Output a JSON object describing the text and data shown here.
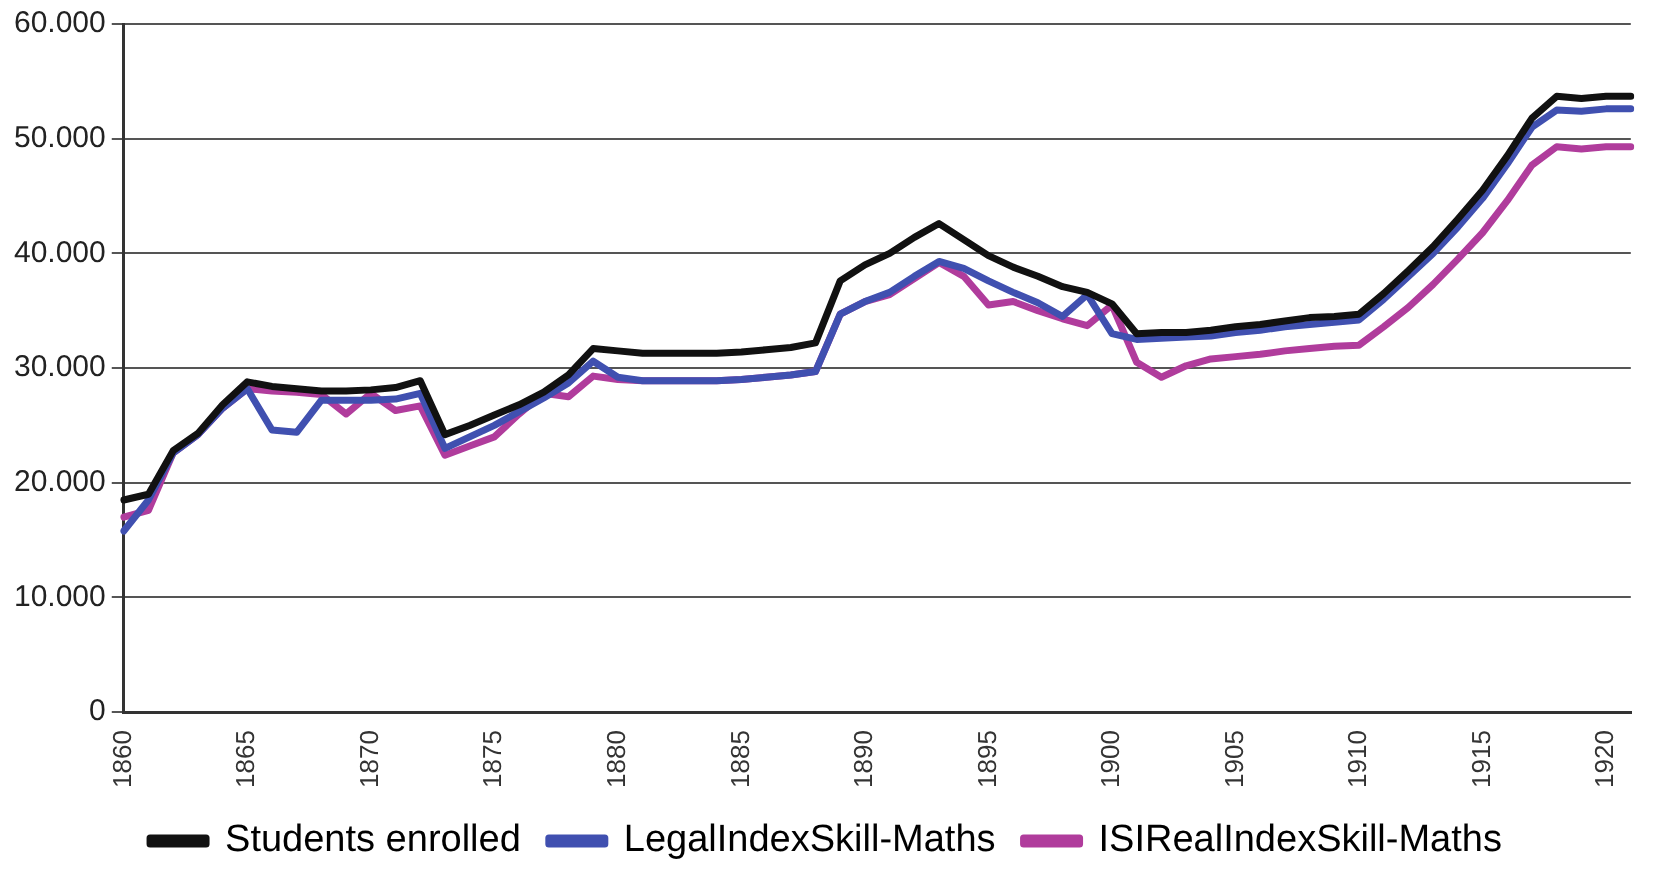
{
  "chart_data": {
    "type": "line",
    "categories": [
      "1860",
      null,
      null,
      null,
      null,
      "1865",
      null,
      null,
      null,
      null,
      "1870",
      null,
      null,
      null,
      null,
      "1875",
      null,
      null,
      null,
      null,
      "1880",
      null,
      null,
      null,
      null,
      "1885",
      null,
      null,
      null,
      null,
      "1890",
      null,
      null,
      null,
      null,
      "1895",
      null,
      null,
      null,
      null,
      "1900",
      null,
      null,
      null,
      null,
      "1905",
      null,
      null,
      null,
      null,
      "1910",
      null,
      null,
      null,
      null,
      "1915",
      null,
      null,
      null,
      null,
      "1920",
      null
    ],
    "series": [
      {
        "name": "Students enrolled",
        "color": "#111111",
        "values": [
          18500,
          19000,
          22800,
          24300,
          26800,
          28800,
          28400,
          28200,
          28000,
          28000,
          28100,
          28300,
          28900,
          24200,
          25000,
          25900,
          26800,
          27900,
          29400,
          31700,
          31500,
          31300,
          31300,
          31300,
          31300,
          31400,
          31600,
          31800,
          32200,
          37600,
          39000,
          40000,
          41400,
          42600,
          41200,
          39800,
          38800,
          38000,
          37100,
          36600,
          35600,
          33000,
          33100,
          33100,
          33300,
          33600,
          33800,
          34100,
          34400,
          34500,
          34700,
          36500,
          38500,
          40600,
          43000,
          45500,
          48500,
          51800,
          53700,
          53500,
          53700,
          53700
        ]
      },
      {
        "name": "LegalIndexSkill-Maths",
        "color": "#4050b0",
        "values": [
          15800,
          18500,
          22600,
          24200,
          26500,
          28200,
          24600,
          24400,
          27200,
          27200,
          27200,
          27300,
          27800,
          23000,
          24000,
          25000,
          26200,
          27400,
          28700,
          30600,
          29200,
          28900,
          28900,
          28900,
          28900,
          29000,
          29200,
          29400,
          29700,
          34700,
          35800,
          36600,
          38000,
          39300,
          38700,
          37600,
          36600,
          35700,
          34500,
          36400,
          33000,
          32500,
          32600,
          32700,
          32800,
          33100,
          33300,
          33600,
          33800,
          34000,
          34200,
          36000,
          38000,
          40000,
          42300,
          44800,
          47800,
          51000,
          52500,
          52400,
          52600,
          52600
        ]
      },
      {
        "name": "ISIRealIndexSkill-Maths",
        "color": "#b03c9c",
        "values": [
          17000,
          17600,
          22600,
          24200,
          26500,
          28200,
          28000,
          27900,
          27700,
          26000,
          27800,
          26300,
          26700,
          22400,
          23200,
          24000,
          26000,
          27800,
          27500,
          29300,
          29000,
          28900,
          28900,
          28900,
          28900,
          29000,
          29200,
          29400,
          29700,
          34700,
          35800,
          36400,
          37800,
          39200,
          38000,
          35500,
          35800,
          35000,
          34300,
          33700,
          35500,
          30500,
          29200,
          30200,
          30800,
          31000,
          31200,
          31500,
          31700,
          31900,
          32000,
          33600,
          35300,
          37300,
          39500,
          41800,
          44600,
          47700,
          49300,
          49100,
          49300,
          49300
        ]
      }
    ],
    "ylim": [
      0,
      60000
    ],
    "yticks": [
      {
        "value": 0,
        "label": "0"
      },
      {
        "value": 10000,
        "label": "10.000"
      },
      {
        "value": 20000,
        "label": "20.000"
      },
      {
        "value": 30000,
        "label": "30.000"
      },
      {
        "value": 40000,
        "label": "40.000"
      },
      {
        "value": 50000,
        "label": "50.000"
      },
      {
        "value": 60000,
        "label": "60.000"
      }
    ],
    "grid": "y",
    "legend": "bottom",
    "marker": "none",
    "line_style": "solid"
  }
}
